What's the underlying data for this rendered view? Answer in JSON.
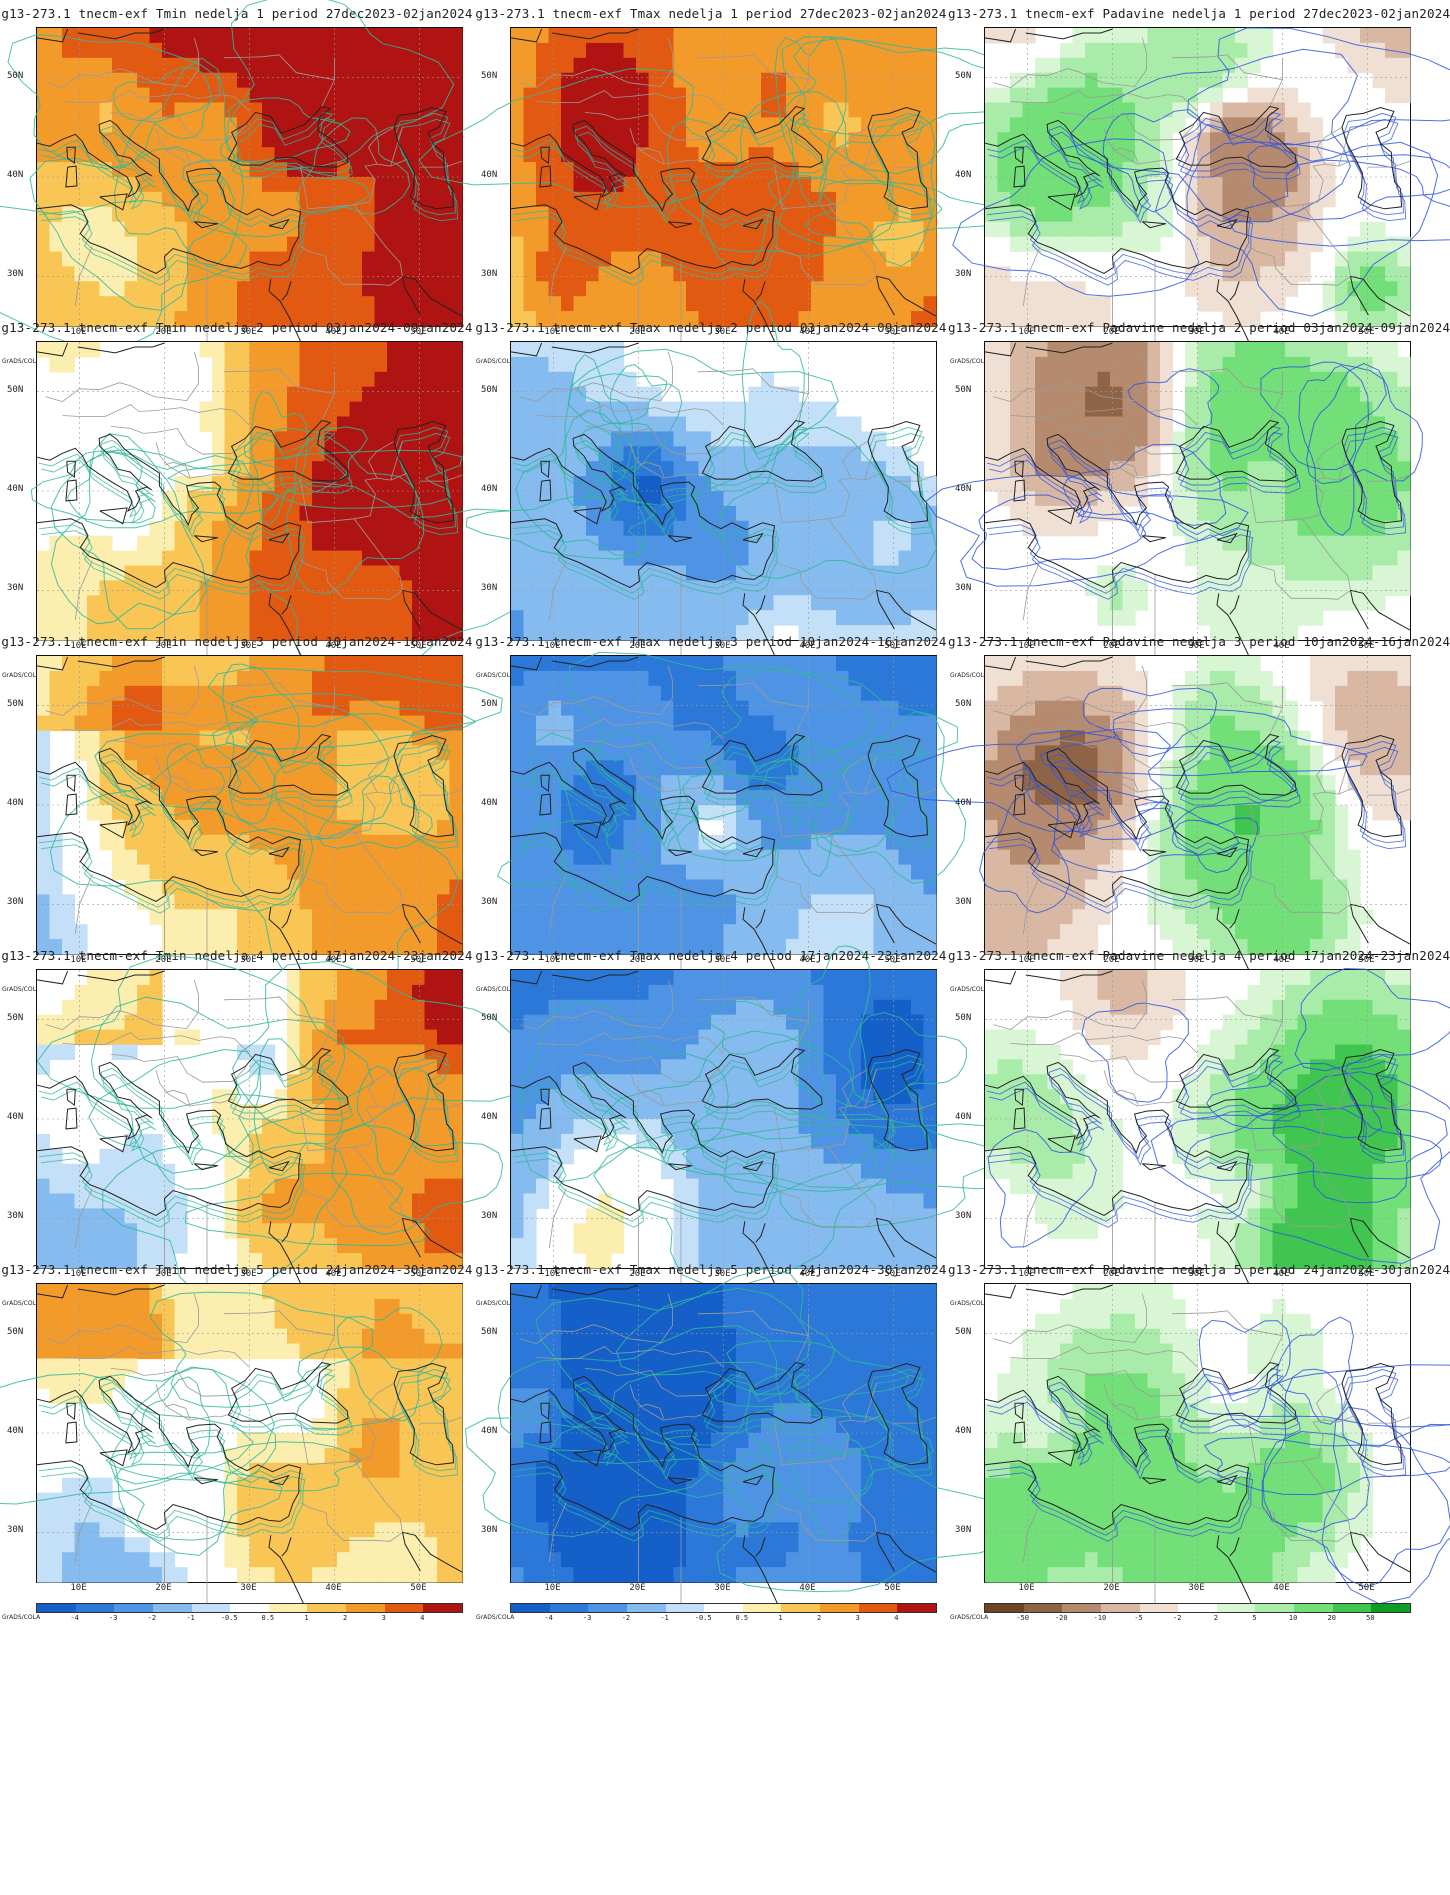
{
  "grads_label": "GrADS/COLA",
  "lat_labels": [
    "50N",
    "40N",
    "30N"
  ],
  "lon_labels": [
    "10E",
    "20E",
    "30E",
    "40E",
    "50E"
  ],
  "scales": {
    "temp": {
      "labels": [
        "-4",
        "-3",
        "-2",
        "-1",
        "-0.5",
        "0.5",
        "1",
        "2",
        "3",
        "4"
      ],
      "colors": [
        "#1560c8",
        "#2b78d8",
        "#4f94e4",
        "#86bbef",
        "#c4e0f8",
        "#ffffff",
        "#fbeeaf",
        "#f9c655",
        "#f29b2b",
        "#e25a12",
        "#b01412"
      ]
    },
    "precip": {
      "labels": [
        "-50",
        "-20",
        "-10",
        "-5",
        "-2",
        "2",
        "5",
        "10",
        "20",
        "50"
      ],
      "colors": [
        "#6b4526",
        "#8f6446",
        "#b58a6e",
        "#d8b8a3",
        "#f0e0d4",
        "#ffffff",
        "#d9f6d4",
        "#a9ecaa",
        "#73df78",
        "#3fc550",
        "#0d9c25"
      ]
    }
  },
  "panels": [
    {
      "title": "g13-273.1 tnecm-exf Tmin nedelja 1 period 27dec2023-02jan2024",
      "kind": "tmin",
      "scale": "temp",
      "week": 1
    },
    {
      "title": "g13-273.1 tnecm-exf Tmax nedelja 1 period 27dec2023-02jan2024",
      "kind": "tmax",
      "scale": "temp",
      "week": 1
    },
    {
      "title": "g13-273.1 tnecm-exf Padavine nedelja 1 period 27dec2023-02jan2024",
      "kind": "precip",
      "scale": "precip",
      "week": 1
    },
    {
      "title": "g13-273.1 tnecm-exf Tmin nedelja 2 period 03jan2024-09jan2024",
      "kind": "tmin",
      "scale": "temp",
      "week": 2
    },
    {
      "title": "g13-273.1 tnecm-exf Tmax nedelja 2 period 03jan2024-09jan2024",
      "kind": "tmax",
      "scale": "temp",
      "week": 2
    },
    {
      "title": "g13-273.1 tnecm-exf Padavine nedelja 2 period 03jan2024-09jan2024",
      "kind": "precip",
      "scale": "precip",
      "week": 2
    },
    {
      "title": "g13-273.1 tnecm-exf Tmin nedelja 3 period 10jan2024-16jan2024",
      "kind": "tmin",
      "scale": "temp",
      "week": 3
    },
    {
      "title": "g13-273.1 tnecm-exf Tmax nedelja 3 period 10jan2024-16jan2024",
      "kind": "tmax",
      "scale": "temp",
      "week": 3
    },
    {
      "title": "g13-273.1 tnecm-exf Padavine nedelja 3 period 10jan2024-16jan2024",
      "kind": "precip",
      "scale": "precip",
      "week": 3
    },
    {
      "title": "g13-273.1 tnecm-exf Tmin nedelja 4 period 17jan2024-23jan2024",
      "kind": "tmin",
      "scale": "temp",
      "week": 4
    },
    {
      "title": "g13-273.1 tnecm-exf Tmax nedelja 4 period 17jan2024-23jan2024",
      "kind": "tmax",
      "scale": "temp",
      "week": 4
    },
    {
      "title": "g13-273.1 tnecm-exf Padavine nedelja 4 period 17jan2024-23jan2024",
      "kind": "precip",
      "scale": "precip",
      "week": 4
    },
    {
      "title": "g13-273.1 tnecm-exf Tmin nedelja 5 period 24jan2024-30jan2024",
      "kind": "tmin",
      "scale": "temp",
      "week": 5
    },
    {
      "title": "g13-273.1 tnecm-exf Tmax nedelja 5 period 24jan2024-30jan2024",
      "kind": "tmax",
      "scale": "temp",
      "week": 5
    },
    {
      "title": "g13-273.1 tnecm-exf Padavine nedelja 5 period 24jan2024-30jan2024",
      "kind": "precip",
      "scale": "precip",
      "week": 5
    }
  ],
  "colors": {
    "contour_temp": "#2fb89a",
    "contour_precip": "#2f56e0",
    "coast": "#222222",
    "border": "#9a9a9a",
    "gridline": "#9a9a9a"
  }
}
